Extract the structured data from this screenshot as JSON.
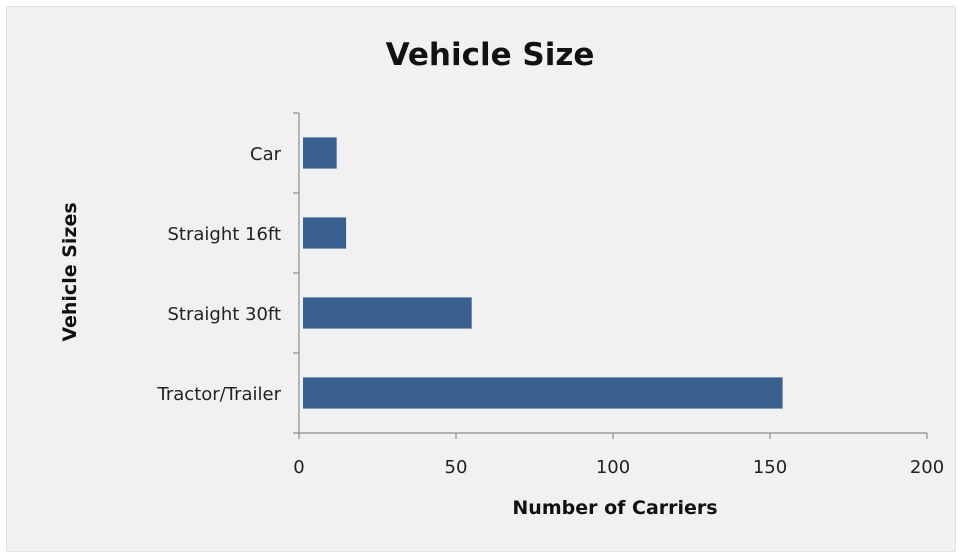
{
  "chart_data": {
    "type": "bar",
    "orientation": "horizontal",
    "title": "Vehicle Size",
    "xlabel": "Number of Carriers",
    "ylabel": "Vehicle Sizes",
    "categories": [
      "Car",
      "Straight 16ft",
      "Straight 30ft",
      "Tractor/Trailer"
    ],
    "values": [
      12,
      15,
      55,
      154
    ],
    "xlim": [
      0,
      200
    ],
    "xticks": [
      0,
      50,
      100,
      150,
      200
    ],
    "xtick_labels": [
      "0",
      "50",
      "100",
      "150",
      "200"
    ],
    "grid": false,
    "legend": "none",
    "bar_color": "#3a5f91",
    "background_color": "#f1f1f1"
  }
}
